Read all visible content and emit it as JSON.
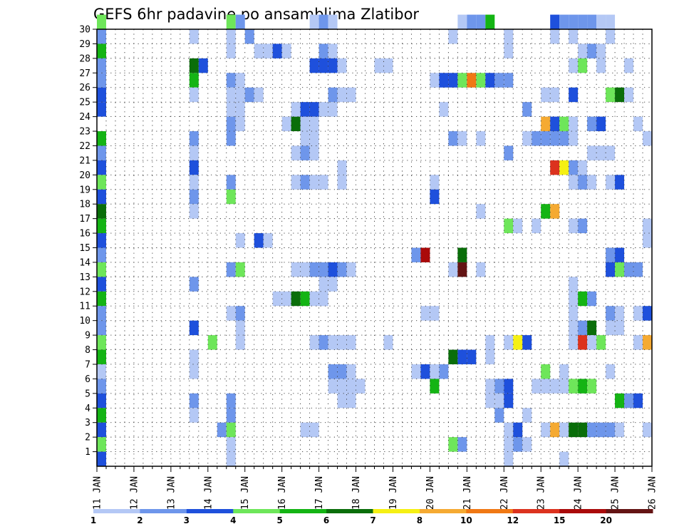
{
  "colors": {
    "background": "#ffffff",
    "frame": "#000000",
    "grid": "#333333",
    "title_text": "#000000",
    "bins": [
      "#b4c8f5",
      "#6e96eb",
      "#1e50dc",
      "#6ee65a",
      "#14b414",
      "#0a6e0a",
      "#f5f014",
      "#f5aa32",
      "#f07814",
      "#dc321e",
      "#aa0a0a",
      "#641414"
    ]
  },
  "chart_data": {
    "type": "heatmap",
    "title": "GEFS 6hr padavine po ansamblima Zlatibor",
    "xlabel": "",
    "ylabel": "",
    "grid": true,
    "x_tick_labels": [
      "11 JAN",
      "12 JAN",
      "13 JAN",
      "14 JAN",
      "15 JAN",
      "16 JAN",
      "17 JAN",
      "18 JAN",
      "19 JAN",
      "20 JAN",
      "21 JAN",
      "22 JAN",
      "23 JAN",
      "24 JAN",
      "25 JAN",
      "26 JAN"
    ],
    "x_tick_values": [
      11,
      12,
      13,
      14,
      15,
      16,
      17,
      18,
      19,
      20,
      21,
      22,
      23,
      24,
      25,
      26
    ],
    "xlim": [
      11,
      26
    ],
    "y_tick_labels": [
      "1",
      "2",
      "3",
      "4",
      "5",
      "6",
      "7",
      "8",
      "9",
      "10",
      "11",
      "12",
      "13",
      "14",
      "15",
      "16",
      "17",
      "18",
      "19",
      "20",
      "21",
      "22",
      "23",
      "24",
      "25",
      "26",
      "27",
      "28",
      "29",
      "30"
    ],
    "ylim": [
      0,
      30
    ],
    "colorbar": {
      "labels": [
        "1",
        "2",
        "3",
        "4",
        "5",
        "6",
        "7",
        "8",
        "10",
        "12",
        "15",
        "20"
      ],
      "boundaries": [
        1,
        2,
        3,
        4,
        5,
        6,
        7,
        8,
        10,
        12,
        15,
        20
      ]
    },
    "time_step_days": 0.25,
    "data_note": "cells: [day_of_january, ensemble_member, color_bin_index]",
    "cells": [
      [
        11,
        30,
        3
      ],
      [
        11,
        29,
        1
      ],
      [
        11,
        28,
        4
      ],
      [
        11,
        27,
        1
      ],
      [
        11,
        26,
        1
      ],
      [
        11,
        25,
        2
      ],
      [
        11,
        24,
        2
      ],
      [
        11,
        22,
        4
      ],
      [
        11,
        21,
        1
      ],
      [
        11,
        20,
        2
      ],
      [
        11,
        19,
        3
      ],
      [
        11,
        18,
        2
      ],
      [
        11,
        17,
        5
      ],
      [
        11,
        16,
        4
      ],
      [
        11,
        15,
        2
      ],
      [
        11,
        14,
        1
      ],
      [
        11,
        13,
        3
      ],
      [
        11,
        12,
        2
      ],
      [
        11,
        11,
        4
      ],
      [
        11,
        10,
        1
      ],
      [
        11,
        9,
        1
      ],
      [
        11,
        8,
        3
      ],
      [
        11,
        7,
        4
      ],
      [
        11,
        6,
        0
      ],
      [
        11,
        5,
        1
      ],
      [
        11,
        4,
        2
      ],
      [
        11,
        3,
        4
      ],
      [
        11,
        2,
        2
      ],
      [
        11,
        1,
        3
      ],
      [
        11,
        0,
        2
      ],
      [
        13.5,
        29,
        0
      ],
      [
        13.5,
        27,
        5
      ],
      [
        13.75,
        27,
        2
      ],
      [
        13.5,
        26,
        4
      ],
      [
        13.5,
        25,
        0
      ],
      [
        13.5,
        22,
        1
      ],
      [
        13.5,
        21,
        0
      ],
      [
        13.5,
        20,
        2
      ],
      [
        13.5,
        19,
        0
      ],
      [
        13.5,
        18,
        1
      ],
      [
        13.5,
        17,
        0
      ],
      [
        13.5,
        12,
        1
      ],
      [
        13.5,
        9,
        2
      ],
      [
        13.5,
        7,
        0
      ],
      [
        13.5,
        6,
        0
      ],
      [
        13.5,
        4,
        1
      ],
      [
        13.5,
        3,
        0
      ],
      [
        14,
        8,
        3
      ],
      [
        14.25,
        2,
        1
      ],
      [
        14.5,
        30,
        3
      ],
      [
        14.75,
        30,
        1
      ],
      [
        14.5,
        29,
        0
      ],
      [
        14.5,
        28,
        0
      ],
      [
        14.5,
        26,
        1
      ],
      [
        14.75,
        26,
        0
      ],
      [
        14.5,
        25,
        0
      ],
      [
        14.75,
        25,
        0
      ],
      [
        14.5,
        24,
        0
      ],
      [
        14.75,
        24,
        0
      ],
      [
        14.5,
        23,
        1
      ],
      [
        14.75,
        23,
        0
      ],
      [
        14.5,
        22,
        1
      ],
      [
        14.5,
        19,
        1
      ],
      [
        14.5,
        18,
        3
      ],
      [
        14.75,
        15,
        0
      ],
      [
        14.5,
        13,
        1
      ],
      [
        14.75,
        13,
        3
      ],
      [
        14.5,
        10,
        0
      ],
      [
        14.75,
        10,
        1
      ],
      [
        14.75,
        9,
        0
      ],
      [
        14.75,
        8,
        0
      ],
      [
        14.5,
        4,
        1
      ],
      [
        14.5,
        3,
        1
      ],
      [
        14.5,
        2,
        3
      ],
      [
        14.5,
        1,
        0
      ],
      [
        14.5,
        0,
        0
      ],
      [
        15,
        29,
        1
      ],
      [
        15,
        25,
        1
      ],
      [
        15.25,
        25,
        0
      ],
      [
        15.25,
        28,
        0
      ],
      [
        15.5,
        28,
        0
      ],
      [
        15.75,
        28,
        2
      ],
      [
        16,
        28,
        0
      ],
      [
        15.25,
        15,
        2
      ],
      [
        15.5,
        15,
        0
      ],
      [
        15.75,
        11,
        0
      ],
      [
        16,
        11,
        0
      ],
      [
        16.25,
        11,
        5
      ],
      [
        16.5,
        11,
        4
      ],
      [
        16.75,
        11,
        0
      ],
      [
        17,
        11,
        0
      ],
      [
        16,
        23,
        0
      ],
      [
        16.25,
        23,
        5
      ],
      [
        16.5,
        23,
        0
      ],
      [
        16.75,
        23,
        0
      ],
      [
        16.25,
        24,
        0
      ],
      [
        16.5,
        24,
        2
      ],
      [
        16.75,
        24,
        2
      ],
      [
        17,
        24,
        0
      ],
      [
        17.25,
        24,
        0
      ],
      [
        16.5,
        22,
        0
      ],
      [
        16.75,
        22,
        0
      ],
      [
        16.25,
        21,
        0
      ],
      [
        16.5,
        21,
        1
      ],
      [
        16.75,
        21,
        0
      ],
      [
        16.25,
        19,
        0
      ],
      [
        16.5,
        19,
        1
      ],
      [
        16.75,
        19,
        0
      ],
      [
        17,
        19,
        0
      ],
      [
        16.25,
        13,
        0
      ],
      [
        16.5,
        13,
        0
      ],
      [
        16.75,
        13,
        1
      ],
      [
        17,
        13,
        1
      ],
      [
        17.25,
        13,
        2
      ],
      [
        17.5,
        13,
        1
      ],
      [
        17.75,
        13,
        0
      ],
      [
        17,
        12,
        0
      ],
      [
        17.25,
        12,
        0
      ],
      [
        17,
        11,
        0
      ],
      [
        16.75,
        8,
        0
      ],
      [
        17,
        8,
        1
      ],
      [
        17.25,
        8,
        0
      ],
      [
        17.5,
        8,
        0
      ],
      [
        16.5,
        2,
        0
      ],
      [
        16.75,
        2,
        0
      ],
      [
        16.75,
        30,
        0
      ],
      [
        17,
        30,
        1
      ],
      [
        17.25,
        30,
        0
      ],
      [
        17,
        28,
        1
      ],
      [
        17.25,
        28,
        0
      ],
      [
        16.75,
        27,
        2
      ],
      [
        17,
        27,
        2
      ],
      [
        17.25,
        27,
        2
      ],
      [
        17.5,
        27,
        0
      ],
      [
        17.25,
        25,
        1
      ],
      [
        17.5,
        25,
        0
      ],
      [
        17.75,
        25,
        0
      ],
      [
        17.5,
        20,
        0
      ],
      [
        17.5,
        19,
        0
      ],
      [
        17.25,
        6,
        1
      ],
      [
        17.5,
        6,
        1
      ],
      [
        17.75,
        6,
        0
      ],
      [
        17.25,
        5,
        0
      ],
      [
        17.5,
        5,
        0
      ],
      [
        17.75,
        5,
        0
      ],
      [
        18,
        5,
        0
      ],
      [
        17.5,
        4,
        0
      ],
      [
        17.75,
        4,
        0
      ],
      [
        17.75,
        8,
        0
      ],
      [
        18.75,
        8,
        0
      ],
      [
        18.5,
        27,
        0
      ],
      [
        18.75,
        27,
        0
      ],
      [
        19.5,
        14,
        1
      ],
      [
        19.75,
        14,
        10
      ],
      [
        19.5,
        6,
        0
      ],
      [
        19.75,
        6,
        2
      ],
      [
        20,
        6,
        0
      ],
      [
        20.25,
        6,
        1
      ],
      [
        19.75,
        10,
        0
      ],
      [
        20,
        10,
        0
      ],
      [
        20,
        19,
        0
      ],
      [
        20,
        18,
        2
      ],
      [
        20,
        5,
        4
      ],
      [
        20,
        26,
        0
      ],
      [
        20.25,
        26,
        2
      ],
      [
        20.5,
        26,
        2
      ],
      [
        20.75,
        26,
        3
      ],
      [
        21,
        26,
        8
      ],
      [
        21.25,
        26,
        3
      ],
      [
        21.5,
        26,
        2
      ],
      [
        21.75,
        26,
        1
      ],
      [
        22,
        26,
        1
      ],
      [
        20.25,
        24,
        0
      ],
      [
        20.5,
        22,
        1
      ],
      [
        20.5,
        13,
        0
      ],
      [
        20.75,
        13,
        11
      ],
      [
        20.75,
        14,
        5
      ],
      [
        20.5,
        7,
        5
      ],
      [
        20.75,
        7,
        2
      ],
      [
        21,
        7,
        2
      ],
      [
        20.5,
        1,
        3
      ],
      [
        20.75,
        1,
        1
      ],
      [
        20.5,
        29,
        0
      ],
      [
        20.75,
        30,
        0
      ],
      [
        21,
        30,
        1
      ],
      [
        21.25,
        30,
        1
      ],
      [
        21.5,
        30,
        4
      ],
      [
        20.75,
        22,
        0
      ],
      [
        21.25,
        22,
        0
      ],
      [
        21.25,
        17,
        0
      ],
      [
        21.25,
        13,
        0
      ],
      [
        21.5,
        8,
        0
      ],
      [
        21.5,
        7,
        0
      ],
      [
        21.5,
        5,
        0
      ],
      [
        21.75,
        5,
        1
      ],
      [
        22,
        5,
        2
      ],
      [
        21.5,
        4,
        0
      ],
      [
        21.75,
        4,
        0
      ],
      [
        22,
        4,
        2
      ],
      [
        21.75,
        3,
        1
      ],
      [
        22,
        2,
        0
      ],
      [
        22.25,
        2,
        2
      ],
      [
        22,
        1,
        0
      ],
      [
        22.25,
        1,
        1
      ],
      [
        22.5,
        1,
        0
      ],
      [
        22,
        0,
        0
      ],
      [
        22,
        16,
        3
      ],
      [
        22.25,
        16,
        0
      ],
      [
        22,
        21,
        1
      ],
      [
        22,
        28,
        0
      ],
      [
        22,
        29,
        0
      ],
      [
        22,
        8,
        0
      ],
      [
        22.25,
        8,
        6
      ],
      [
        22.5,
        8,
        2
      ],
      [
        22.5,
        3,
        0
      ],
      [
        22.5,
        22,
        0
      ],
      [
        22.75,
        22,
        1
      ],
      [
        23,
        22,
        1
      ],
      [
        23.25,
        22,
        1
      ],
      [
        23.5,
        22,
        1
      ],
      [
        23.75,
        22,
        0
      ],
      [
        23,
        23,
        7
      ],
      [
        23.25,
        23,
        2
      ],
      [
        23.5,
        23,
        3
      ],
      [
        23.75,
        23,
        0
      ],
      [
        22.5,
        24,
        1
      ],
      [
        23,
        25,
        0
      ],
      [
        23.25,
        25,
        0
      ],
      [
        23.25,
        20,
        9
      ],
      [
        23.5,
        20,
        6
      ],
      [
        23.75,
        20,
        1
      ],
      [
        24,
        20,
        0
      ],
      [
        23.75,
        19,
        0
      ],
      [
        24,
        19,
        1
      ],
      [
        24.25,
        19,
        0
      ],
      [
        23,
        17,
        4
      ],
      [
        23.25,
        17,
        7
      ],
      [
        22.75,
        16,
        0
      ],
      [
        23.75,
        16,
        0
      ],
      [
        24,
        16,
        1
      ],
      [
        23.75,
        12,
        0
      ],
      [
        23.75,
        11,
        0
      ],
      [
        24,
        11,
        4
      ],
      [
        24.25,
        11,
        1
      ],
      [
        23.25,
        30,
        2
      ],
      [
        23.5,
        30,
        1
      ],
      [
        23.75,
        30,
        1
      ],
      [
        24,
        30,
        1
      ],
      [
        24.25,
        30,
        1
      ],
      [
        24.5,
        30,
        0
      ],
      [
        24.75,
        30,
        0
      ],
      [
        23.25,
        29,
        0
      ],
      [
        23.75,
        29,
        0
      ],
      [
        24,
        28,
        0
      ],
      [
        24.25,
        28,
        1
      ],
      [
        24.5,
        28,
        0
      ],
      [
        24.75,
        29,
        0
      ],
      [
        23.75,
        27,
        0
      ],
      [
        24,
        27,
        3
      ],
      [
        24.5,
        27,
        0
      ],
      [
        25.25,
        27,
        0
      ],
      [
        23.75,
        25,
        2
      ],
      [
        24.75,
        25,
        3
      ],
      [
        25,
        25,
        5
      ],
      [
        25.25,
        25,
        0
      ],
      [
        24.25,
        23,
        1
      ],
      [
        24.5,
        23,
        2
      ],
      [
        25.5,
        23,
        0
      ],
      [
        25.75,
        22,
        0
      ],
      [
        24.25,
        21,
        0
      ],
      [
        24.5,
        21,
        0
      ],
      [
        24.75,
        21,
        0
      ],
      [
        24.75,
        19,
        0
      ],
      [
        25,
        19,
        2
      ],
      [
        23,
        6,
        3
      ],
      [
        23.5,
        6,
        0
      ],
      [
        24.75,
        6,
        0
      ],
      [
        22.75,
        5,
        0
      ],
      [
        23,
        5,
        0
      ],
      [
        23.25,
        5,
        0
      ],
      [
        23.5,
        5,
        0
      ],
      [
        23.75,
        5,
        3
      ],
      [
        24,
        5,
        4
      ],
      [
        24.25,
        5,
        3
      ],
      [
        23,
        2,
        0
      ],
      [
        23.25,
        2,
        7
      ],
      [
        23.5,
        2,
        0
      ],
      [
        23.75,
        2,
        5
      ],
      [
        24,
        2,
        5
      ],
      [
        24.25,
        2,
        1
      ],
      [
        24.5,
        2,
        1
      ],
      [
        24.75,
        2,
        1
      ],
      [
        25,
        2,
        0
      ],
      [
        25.75,
        2,
        0
      ],
      [
        23.5,
        0,
        0
      ],
      [
        23.75,
        10,
        0
      ],
      [
        24.75,
        10,
        1
      ],
      [
        25,
        10,
        0
      ],
      [
        25.5,
        10,
        0
      ],
      [
        25.75,
        10,
        2
      ],
      [
        23.75,
        9,
        0
      ],
      [
        24,
        9,
        1
      ],
      [
        24.25,
        9,
        5
      ],
      [
        24.75,
        9,
        0
      ],
      [
        25,
        9,
        0
      ],
      [
        23.75,
        8,
        0
      ],
      [
        24,
        8,
        9
      ],
      [
        24.25,
        8,
        0
      ],
      [
        24.5,
        8,
        3
      ],
      [
        25.5,
        8,
        0
      ],
      [
        25.75,
        8,
        7
      ],
      [
        24.75,
        14,
        1
      ],
      [
        25,
        14,
        2
      ],
      [
        24.75,
        13,
        2
      ],
      [
        25,
        13,
        3
      ],
      [
        25.25,
        13,
        1
      ],
      [
        25.5,
        13,
        1
      ],
      [
        25.75,
        15,
        0
      ],
      [
        25.75,
        16,
        0
      ],
      [
        25,
        4,
        4
      ],
      [
        25.25,
        4,
        1
      ],
      [
        25.5,
        4,
        2
      ]
    ]
  }
}
